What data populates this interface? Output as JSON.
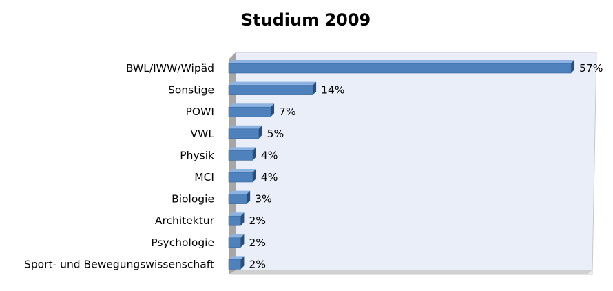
{
  "chart_data": {
    "type": "bar",
    "orientation": "horizontal",
    "title": "Studium 2009",
    "categories": [
      "BWL/IWW/Wipäd",
      "Sonstige",
      "POWI",
      "VWL",
      "Physik",
      "MCI",
      "Biologie",
      "Architektur",
      "Psychologie",
      "Sport- und Bewegungswissenschaft"
    ],
    "values": [
      57,
      14,
      7,
      5,
      4,
      4,
      3,
      2,
      2,
      2
    ],
    "value_labels": [
      "57%",
      "14%",
      "7%",
      "5%",
      "4%",
      "4%",
      "3%",
      "2%",
      "2%",
      "2%"
    ],
    "xlim": [
      0,
      60
    ],
    "grid": false,
    "legend": "none",
    "three_d": true
  },
  "colors": {
    "bar_front": "#4f81bd",
    "bar_top": "#8db3e2",
    "bar_side": "#2c4d75",
    "plot_back": "#eaeef8",
    "plot_floor": "#b4b4b4"
  }
}
